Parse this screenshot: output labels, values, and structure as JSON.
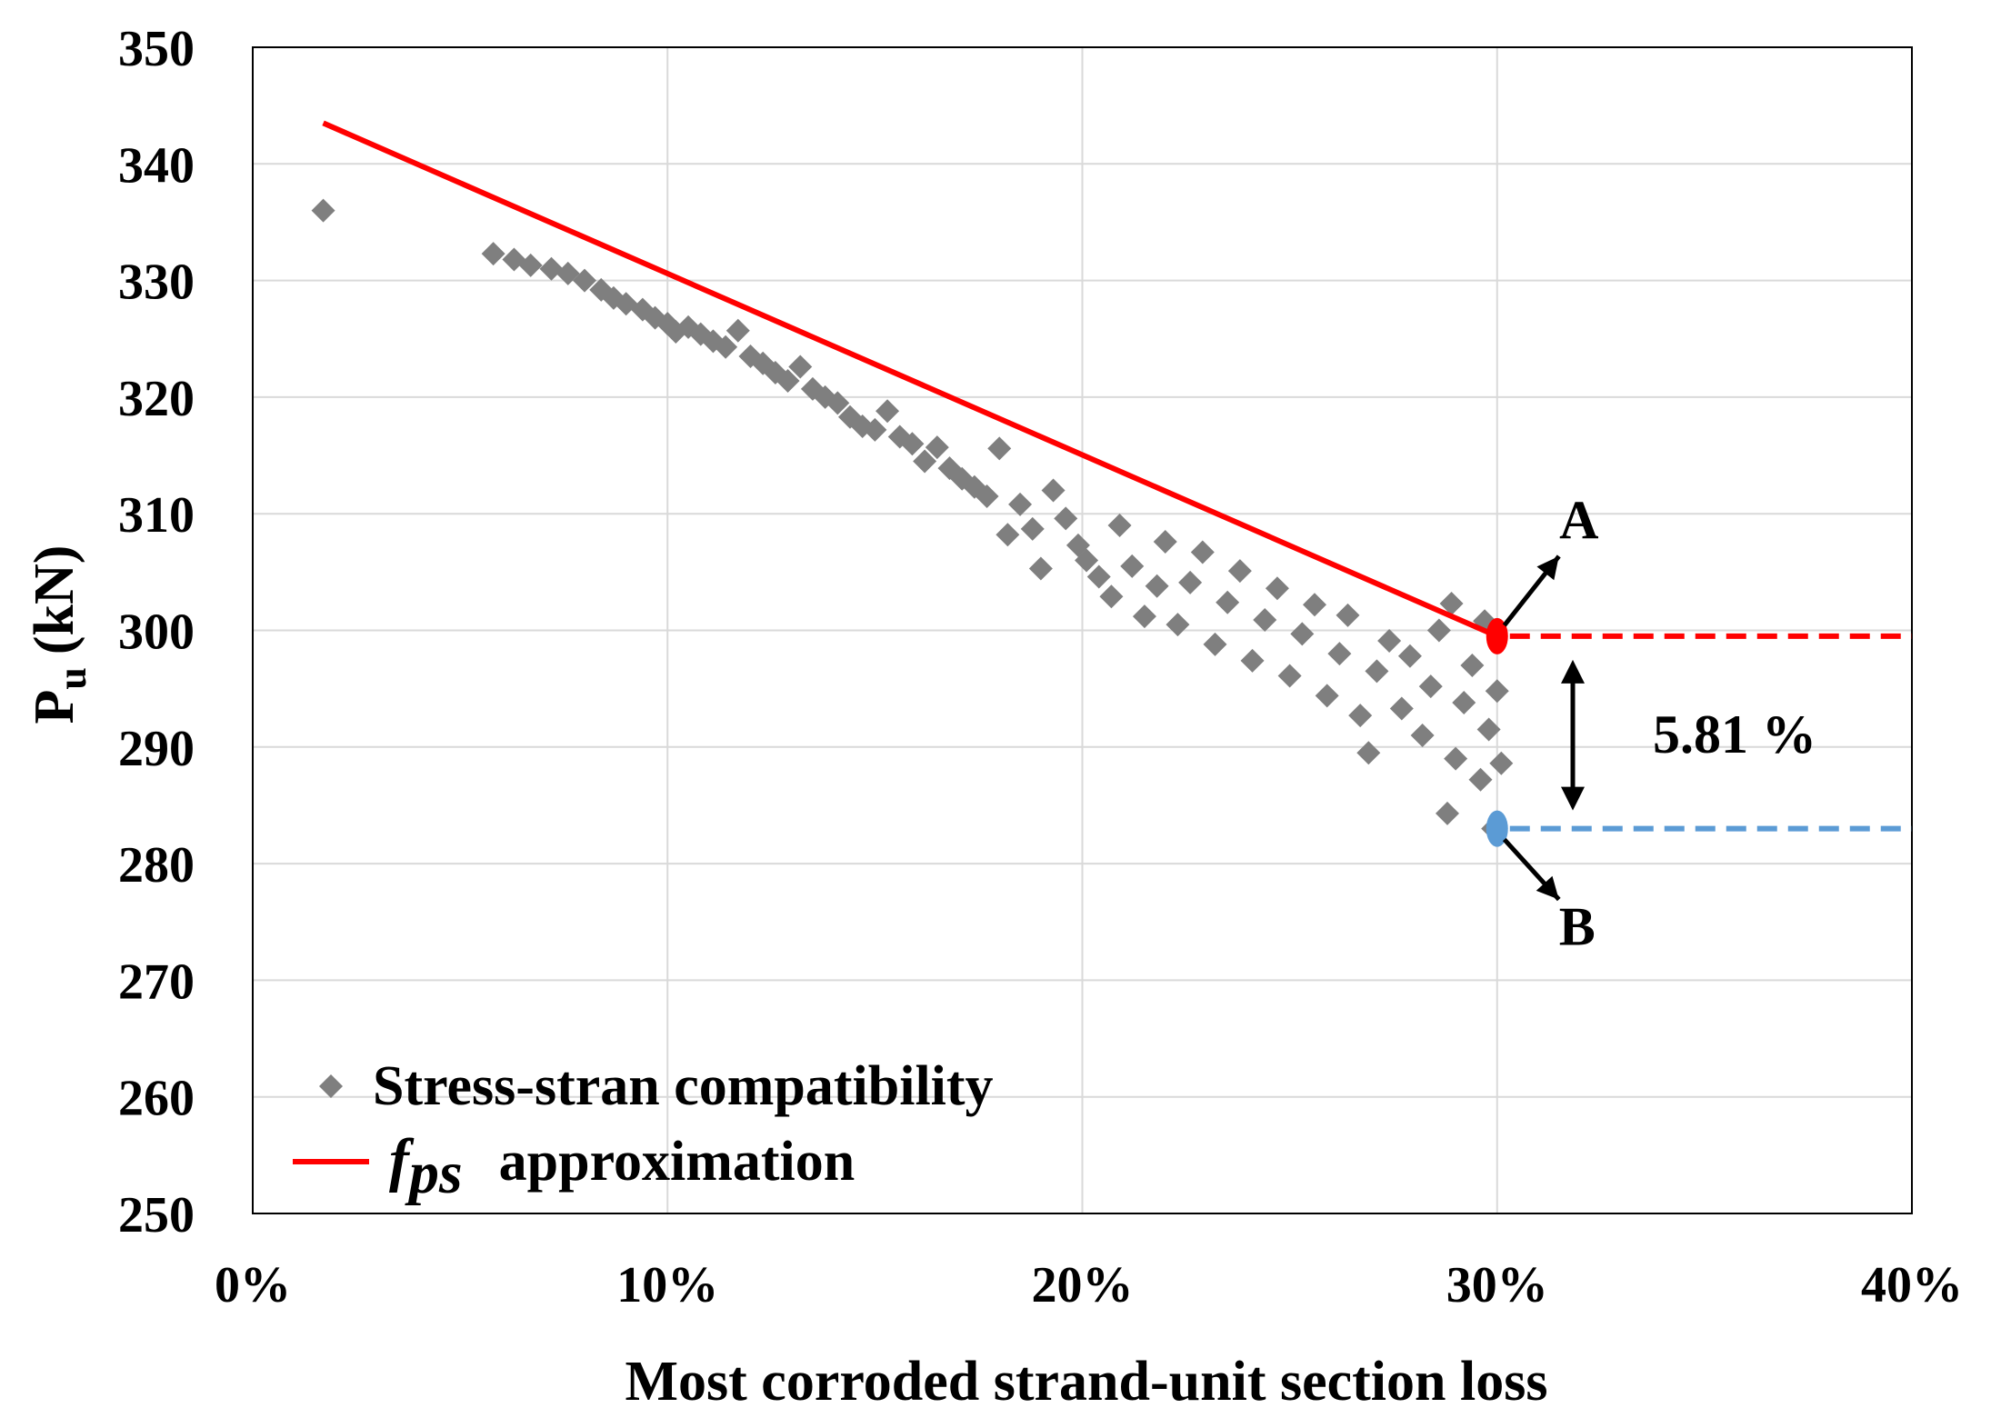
{
  "chart_data": {
    "type": "scatter",
    "xlabel": "Most corroded strand-unit section loss",
    "ylabel": "P",
    "ylabel_sub": "u",
    "ylabel_unit": "(kN)",
    "x_ticks": [
      "0%",
      "10%",
      "20%",
      "30%",
      "40%"
    ],
    "y_ticks": [
      "250",
      "260",
      "270",
      "280",
      "290",
      "300",
      "310",
      "320",
      "330",
      "340",
      "350"
    ],
    "xlim": [
      0,
      40
    ],
    "ylim": [
      250,
      350
    ],
    "grid": true,
    "legend_placement": "bottom-left",
    "legend": {
      "scatter_label": "Stress-stran compatibility",
      "line_label_italic": "f",
      "line_label_sub": "ps",
      "line_label_rest": "approximation"
    },
    "series": [
      {
        "name": "Stress-stran compatibility",
        "kind": "scatter",
        "marker": "diamond",
        "color": "#7f7f7f",
        "points": [
          [
            1.7,
            336.0
          ],
          [
            5.8,
            332.3
          ],
          [
            6.3,
            331.8
          ],
          [
            6.7,
            331.3
          ],
          [
            7.2,
            331.0
          ],
          [
            7.6,
            330.6
          ],
          [
            8.0,
            330.0
          ],
          [
            8.4,
            329.2
          ],
          [
            8.7,
            328.5
          ],
          [
            9.0,
            328.0
          ],
          [
            9.4,
            327.5
          ],
          [
            9.7,
            326.8
          ],
          [
            10.0,
            326.3
          ],
          [
            10.2,
            325.6
          ],
          [
            10.5,
            326.0
          ],
          [
            10.8,
            325.4
          ],
          [
            11.1,
            324.8
          ],
          [
            11.4,
            324.3
          ],
          [
            11.7,
            325.7
          ],
          [
            12.0,
            323.5
          ],
          [
            12.3,
            322.9
          ],
          [
            12.6,
            322.1
          ],
          [
            12.9,
            321.4
          ],
          [
            13.2,
            322.6
          ],
          [
            13.5,
            320.7
          ],
          [
            13.8,
            320.0
          ],
          [
            14.1,
            319.5
          ],
          [
            14.4,
            318.3
          ],
          [
            14.7,
            317.5
          ],
          [
            15.0,
            317.2
          ],
          [
            15.3,
            318.8
          ],
          [
            15.6,
            316.6
          ],
          [
            15.9,
            316.0
          ],
          [
            16.2,
            314.5
          ],
          [
            16.5,
            315.7
          ],
          [
            16.8,
            313.9
          ],
          [
            17.1,
            313.0
          ],
          [
            17.4,
            312.3
          ],
          [
            17.7,
            311.5
          ],
          [
            18.0,
            315.6
          ],
          [
            18.2,
            308.2
          ],
          [
            18.5,
            310.8
          ],
          [
            18.8,
            308.7
          ],
          [
            19.0,
            305.3
          ],
          [
            19.3,
            312.0
          ],
          [
            19.6,
            309.6
          ],
          [
            19.9,
            307.3
          ],
          [
            20.1,
            306.0
          ],
          [
            20.4,
            304.6
          ],
          [
            20.7,
            302.9
          ],
          [
            20.9,
            309.0
          ],
          [
            21.2,
            305.5
          ],
          [
            21.5,
            301.2
          ],
          [
            21.8,
            303.8
          ],
          [
            22.0,
            307.6
          ],
          [
            22.3,
            300.5
          ],
          [
            22.6,
            304.1
          ],
          [
            22.9,
            306.7
          ],
          [
            23.2,
            298.8
          ],
          [
            23.5,
            302.4
          ],
          [
            23.8,
            305.1
          ],
          [
            24.1,
            297.4
          ],
          [
            24.4,
            300.9
          ],
          [
            24.7,
            303.6
          ],
          [
            25.0,
            296.1
          ],
          [
            25.3,
            299.7
          ],
          [
            25.6,
            302.2
          ],
          [
            25.9,
            294.4
          ],
          [
            26.2,
            298.0
          ],
          [
            26.4,
            301.3
          ],
          [
            26.7,
            292.7
          ],
          [
            26.9,
            289.5
          ],
          [
            27.1,
            296.5
          ],
          [
            27.4,
            299.1
          ],
          [
            27.7,
            293.3
          ],
          [
            27.9,
            297.8
          ],
          [
            28.2,
            291.0
          ],
          [
            28.4,
            295.2
          ],
          [
            28.6,
            300.0
          ],
          [
            28.8,
            284.3
          ],
          [
            29.0,
            289.0
          ],
          [
            29.2,
            293.8
          ],
          [
            29.4,
            297.0
          ],
          [
            29.6,
            287.2
          ],
          [
            29.8,
            291.5
          ],
          [
            29.9,
            283.0
          ],
          [
            30.0,
            294.8
          ],
          [
            30.1,
            288.6
          ],
          [
            29.7,
            300.8
          ],
          [
            28.9,
            302.3
          ]
        ]
      },
      {
        "name": "fps approximation",
        "kind": "line",
        "color": "#ff0000",
        "points": [
          [
            1.7,
            343.5
          ],
          [
            30.0,
            299.5
          ]
        ]
      }
    ],
    "annotations": {
      "point_a_label": "A",
      "point_b_label": "B",
      "difference_label": "5.81 %",
      "point_a": [
        30.0,
        299.5
      ],
      "point_b": [
        30.0,
        283.0
      ],
      "point_a_color": "#ff0000",
      "point_b_color": "#5b9bd5"
    }
  }
}
